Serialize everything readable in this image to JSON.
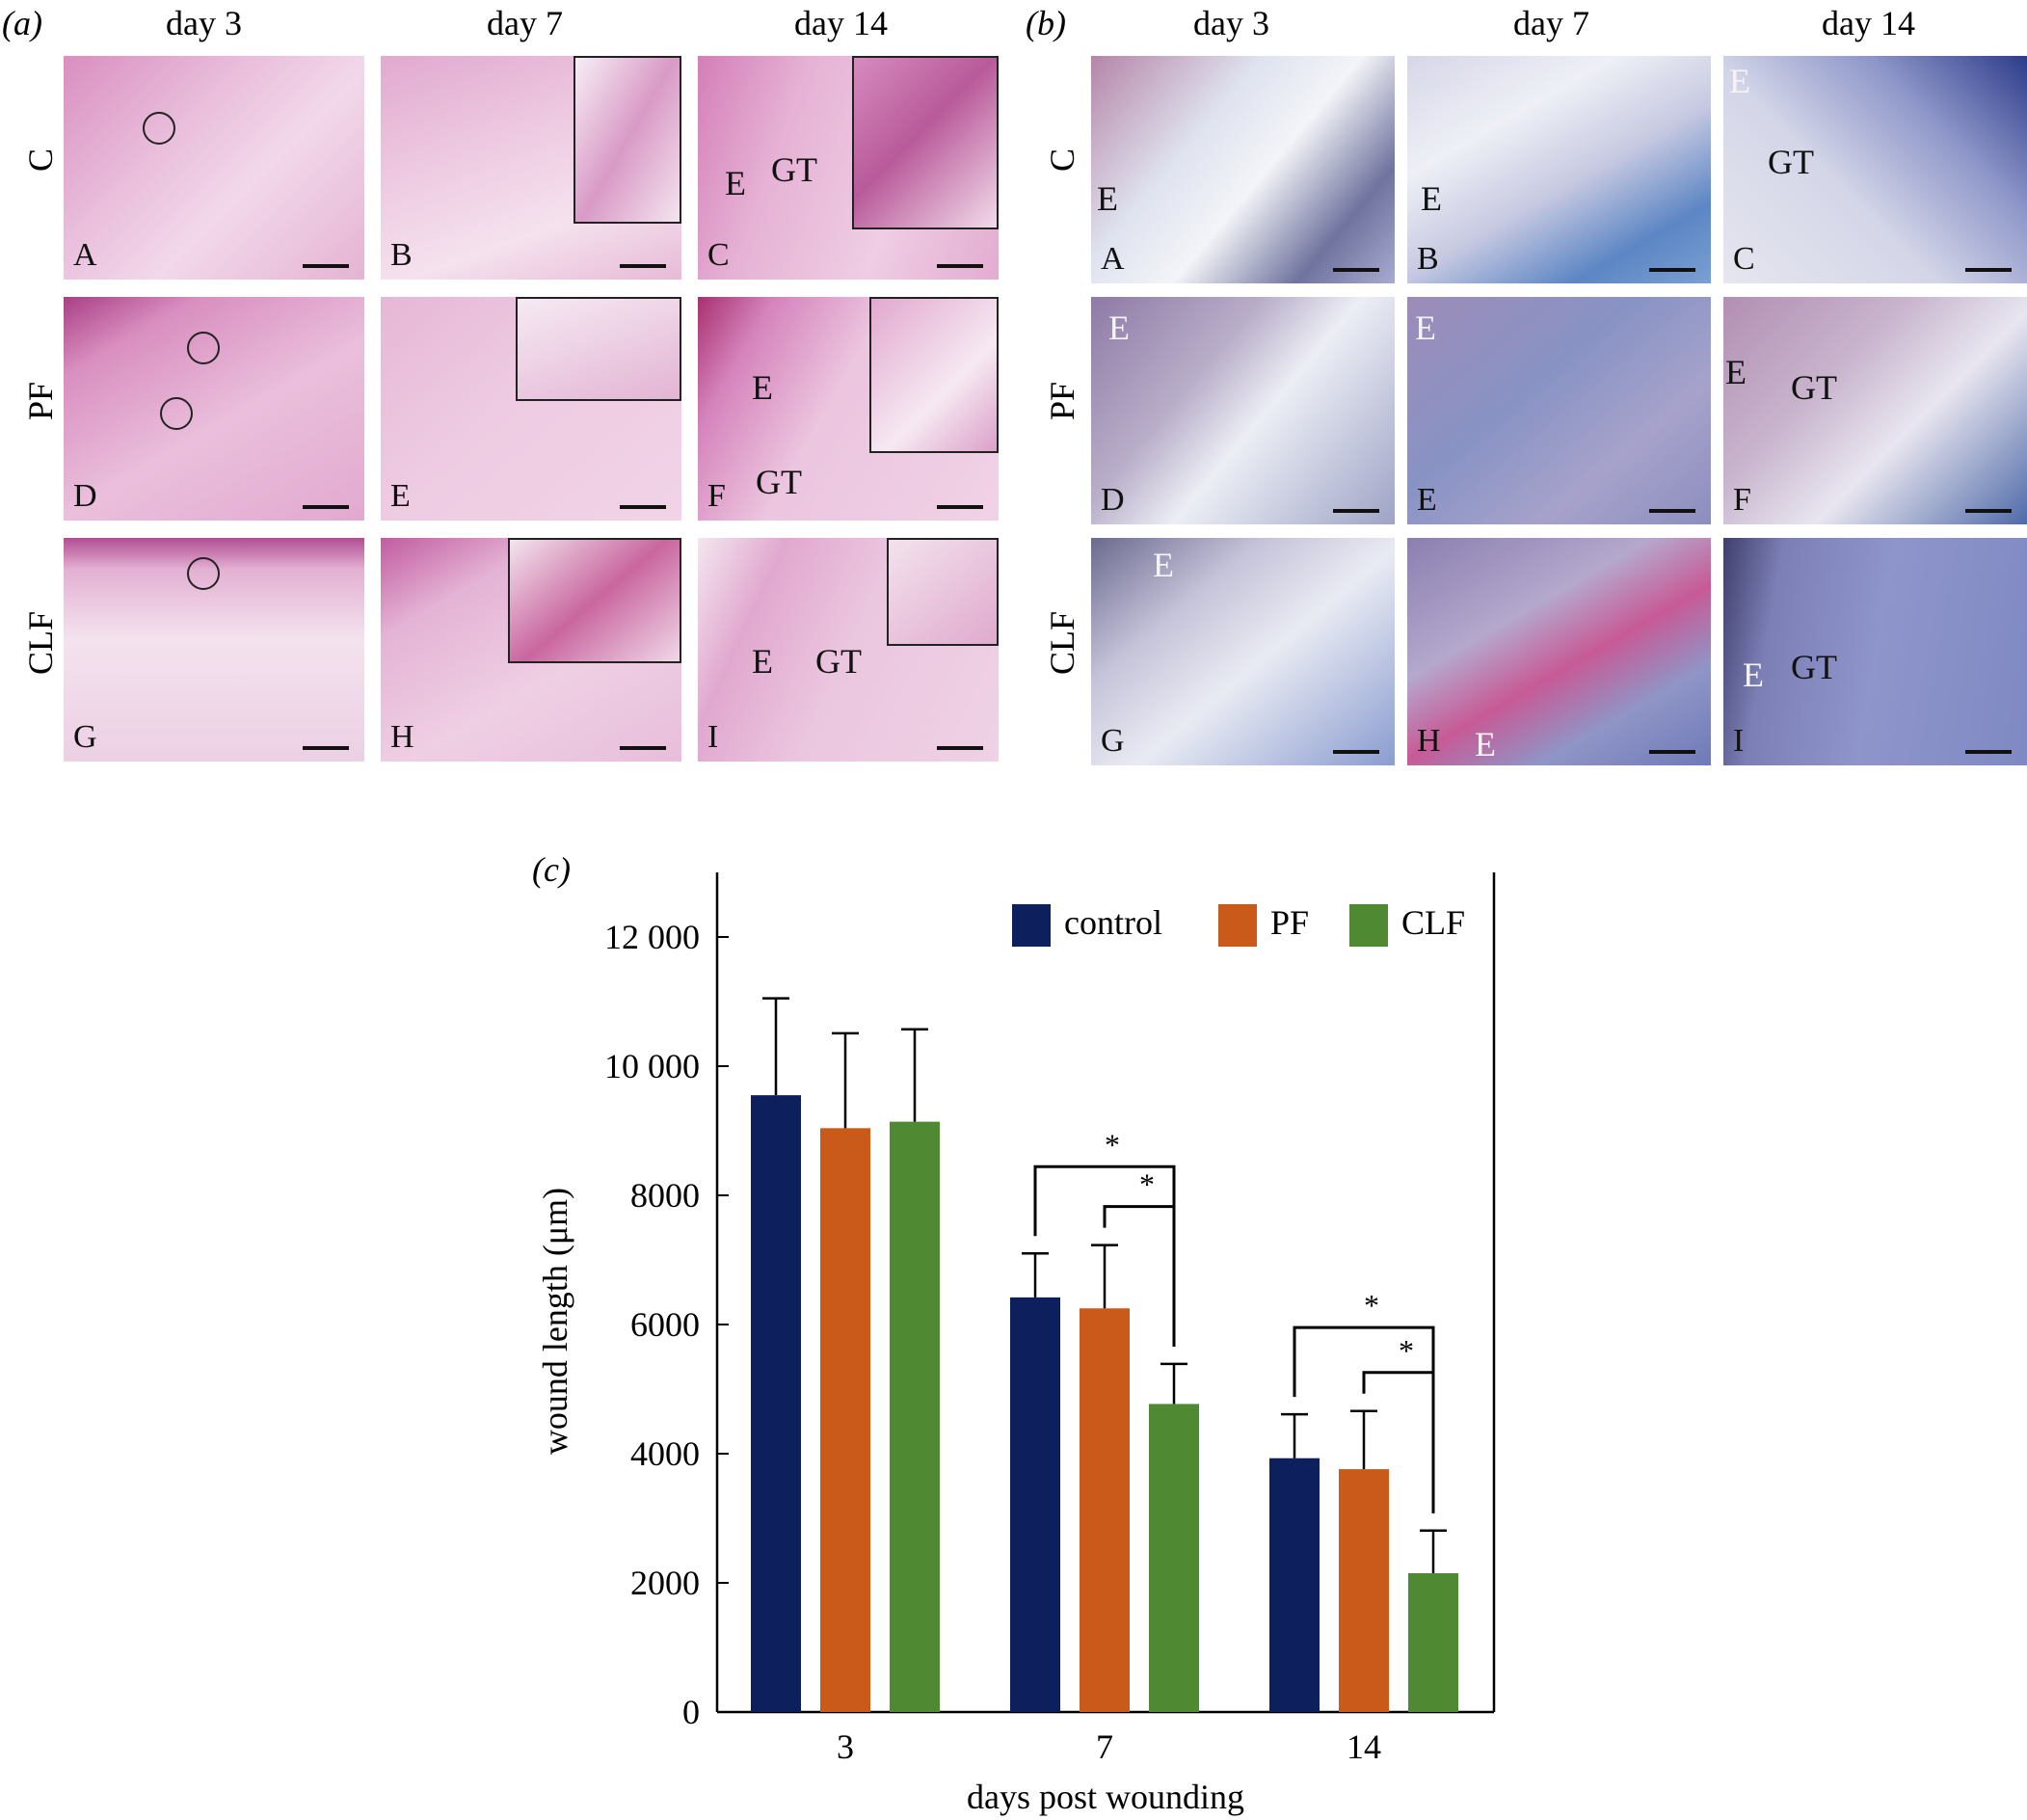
{
  "panel_a": {
    "letter": "(a)",
    "columns": [
      "day 3",
      "day 7",
      "day 14"
    ],
    "rows": [
      "C",
      "PF",
      "CLF"
    ],
    "tiles": [
      {
        "corner": "A",
        "annotations": []
      },
      {
        "corner": "B",
        "annotations": []
      },
      {
        "corner": "C",
        "annotations": [
          "E",
          "GT"
        ]
      },
      {
        "corner": "D",
        "annotations": []
      },
      {
        "corner": "E",
        "annotations": []
      },
      {
        "corner": "F",
        "annotations": [
          "E",
          "GT"
        ]
      },
      {
        "corner": "G",
        "annotations": []
      },
      {
        "corner": "H",
        "annotations": []
      },
      {
        "corner": "I",
        "annotations": [
          "E",
          "GT"
        ]
      }
    ]
  },
  "panel_b": {
    "letter": "(b)",
    "columns": [
      "day 3",
      "day 7",
      "day 14"
    ],
    "rows": [
      "C",
      "PF",
      "CLF"
    ],
    "tiles": [
      {
        "corner": "A",
        "annotations": [
          "E"
        ]
      },
      {
        "corner": "B",
        "annotations": [
          "E"
        ]
      },
      {
        "corner": "C",
        "annotations": [
          "E",
          "GT"
        ]
      },
      {
        "corner": "D",
        "annotations": [
          "E"
        ]
      },
      {
        "corner": "E",
        "annotations": [
          "E"
        ]
      },
      {
        "corner": "F",
        "annotations": [
          "E",
          "GT"
        ]
      },
      {
        "corner": "G",
        "annotations": [
          "E"
        ]
      },
      {
        "corner": "H",
        "annotations": [
          "E"
        ]
      },
      {
        "corner": "I",
        "annotations": [
          "E",
          "GT"
        ]
      }
    ]
  },
  "panel_c": {
    "letter": "(c)"
  },
  "chart_data": {
    "type": "bar",
    "title": "",
    "xlabel": "days post wounding",
    "ylabel": "wound length (μm)",
    "categories": [
      "3",
      "7",
      "14"
    ],
    "ylim": [
      0,
      13000
    ],
    "yticks": [
      0,
      2000,
      4000,
      6000,
      8000,
      10000,
      12000
    ],
    "ytick_labels": [
      "0",
      "2000",
      "4000",
      "6000",
      "8000",
      "10 000",
      "12 000"
    ],
    "legend_position": "top-right",
    "grid": false,
    "series": [
      {
        "name": "control",
        "color": "#0d1f5c",
        "values": [
          9550,
          6420,
          3930
        ],
        "errors": [
          1500,
          680,
          680
        ]
      },
      {
        "name": "PF",
        "color": "#c95a1a",
        "values": [
          9040,
          6250,
          3760
        ],
        "errors": [
          1470,
          980,
          900
        ]
      },
      {
        "name": "CLF",
        "color": "#4f8a32",
        "values": [
          9140,
          4770,
          2150
        ],
        "errors": [
          1430,
          620,
          660
        ]
      }
    ],
    "significance": [
      {
        "category": "7",
        "from_series": "control",
        "to_series": "CLF",
        "label": "*"
      },
      {
        "category": "7",
        "from_series": "PF",
        "to_series": "CLF",
        "label": "*"
      },
      {
        "category": "14",
        "from_series": "control",
        "to_series": "CLF",
        "label": "*"
      },
      {
        "category": "14",
        "from_series": "PF",
        "to_series": "CLF",
        "label": "*"
      }
    ]
  }
}
